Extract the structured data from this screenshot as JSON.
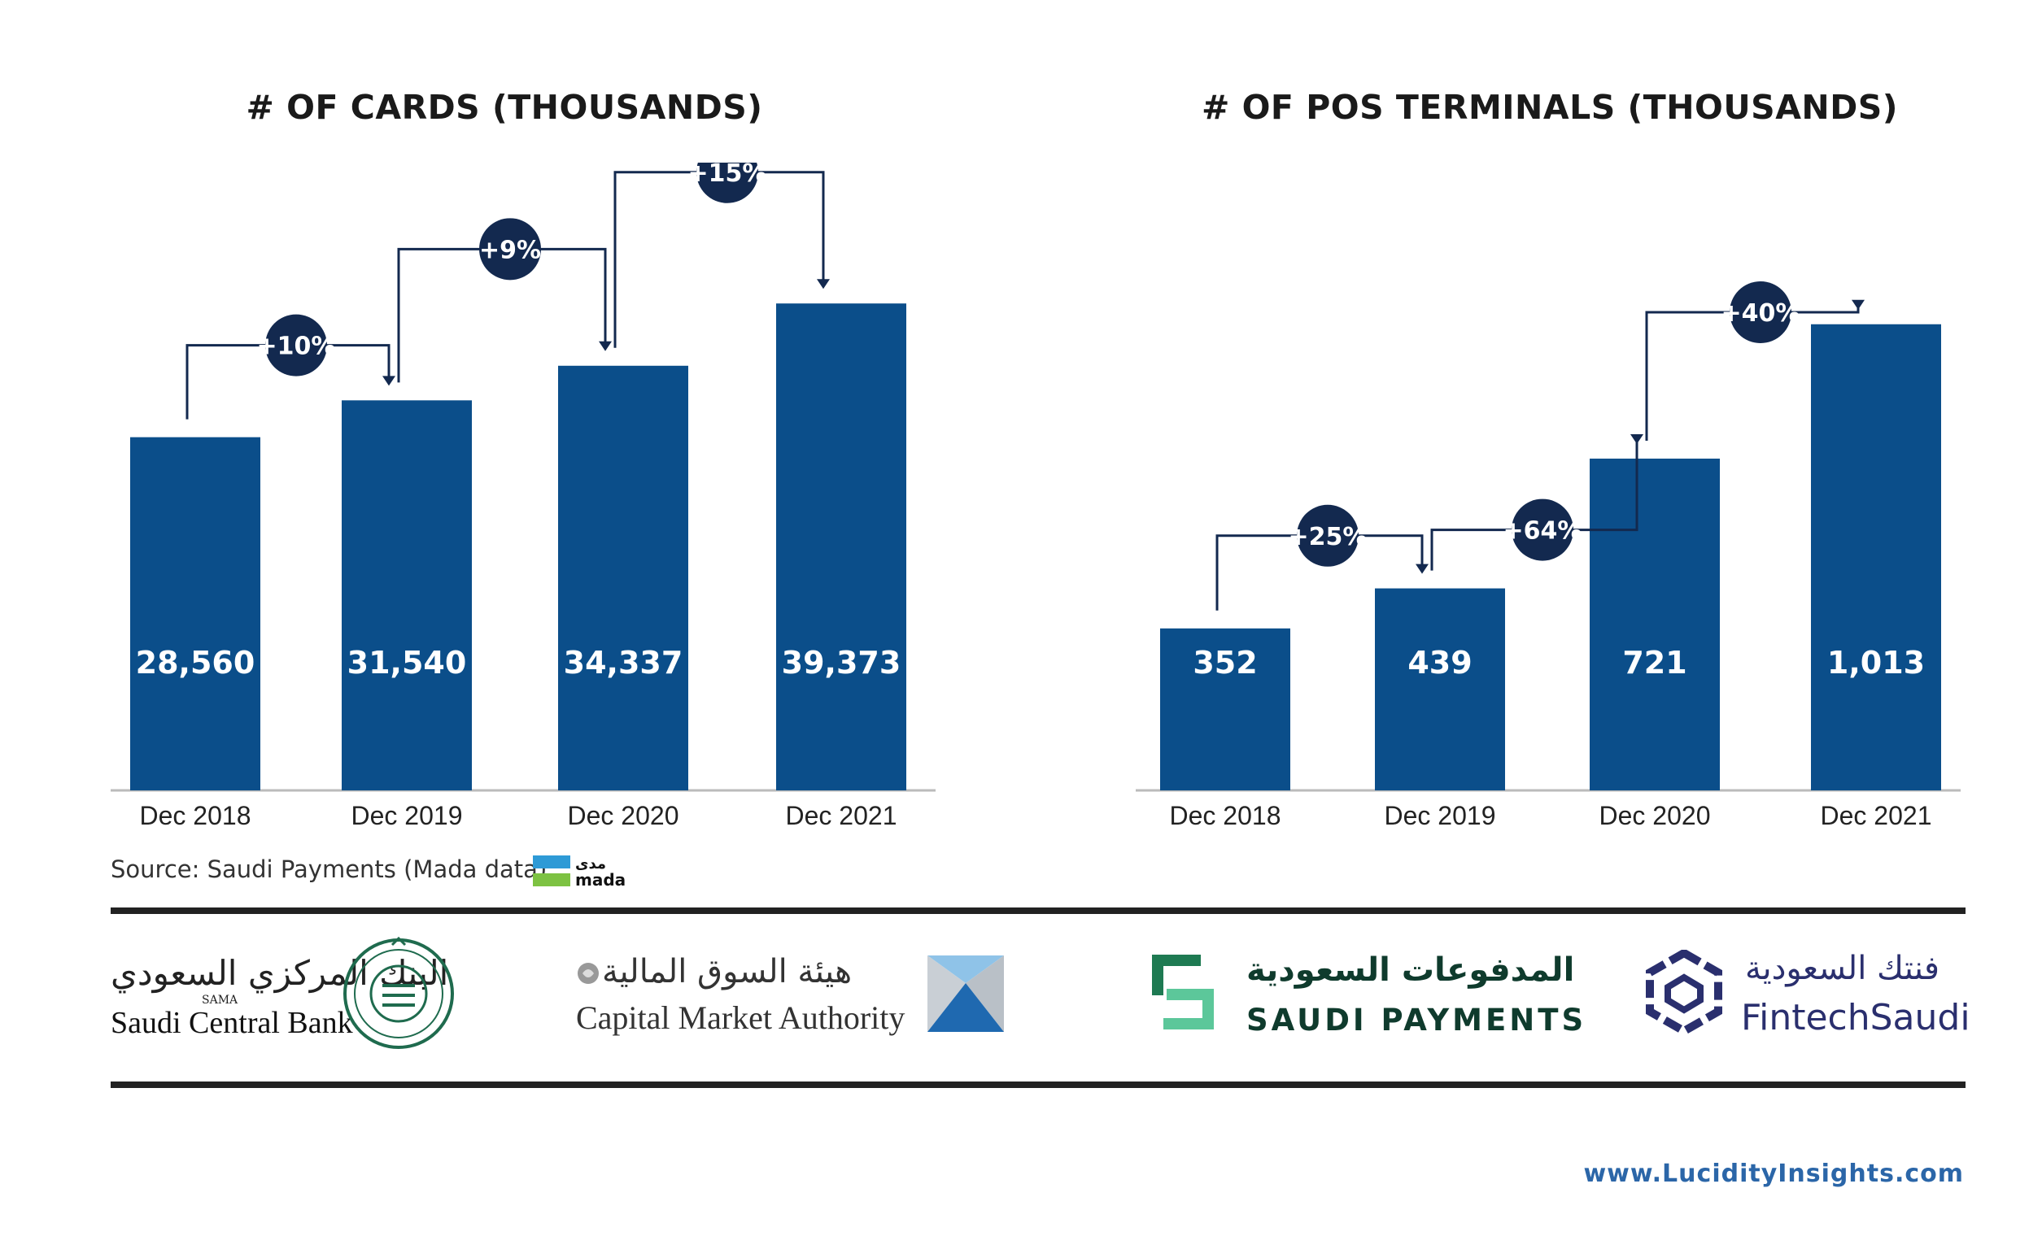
{
  "chart_data": [
    {
      "type": "bar",
      "title": "# OF CARDS (THOUSANDS)",
      "categories": [
        "Dec 2018",
        "Dec 2019",
        "Dec 2020",
        "Dec 2021"
      ],
      "values": [
        28560,
        31540,
        34337,
        39373
      ],
      "value_labels": [
        "28,560",
        "31,540",
        "34,337",
        "39,373"
      ],
      "growth_labels": [
        "+10%",
        "+9%",
        "+15%"
      ],
      "ylim": [
        0,
        48000
      ],
      "grid": false
    },
    {
      "type": "bar",
      "title": "# OF POS TERMINALS (THOUSANDS)",
      "categories": [
        "Dec 2018",
        "Dec 2019",
        "Dec 2020",
        "Dec 2021"
      ],
      "values": [
        352,
        439,
        721,
        1013
      ],
      "value_labels": [
        "352",
        "439",
        "721",
        "1,013"
      ],
      "growth_labels": [
        "+25%",
        "+64%",
        "+40%"
      ],
      "ylim": [
        0,
        1290
      ],
      "grid": false
    }
  ],
  "colors": {
    "bar": "#0b4e8a",
    "badge": "#13294f",
    "connector": "#13294f",
    "axis": "#bbbbbb"
  },
  "source": "Source: Saudi Payments (Mada data)",
  "mada_logo": {
    "arabic": "مدى",
    "latin": "mada"
  },
  "logos": {
    "saudi_central_bank": {
      "arabic": "البنك المركزي السعودي",
      "abbr": "SAMA",
      "english": "Saudi Central Bank"
    },
    "capital_market_authority": {
      "arabic": "هيئة السوق المالية",
      "english": "Capital Market Authority"
    },
    "saudi_payments": {
      "arabic": "المدفوعات السعودية",
      "english": "SAUDI PAYMENTS"
    },
    "fintech_saudi": {
      "arabic": "فنتك السعودية",
      "english": "FintechSaudi"
    }
  },
  "footer_url": "www.LucidityInsights.com"
}
